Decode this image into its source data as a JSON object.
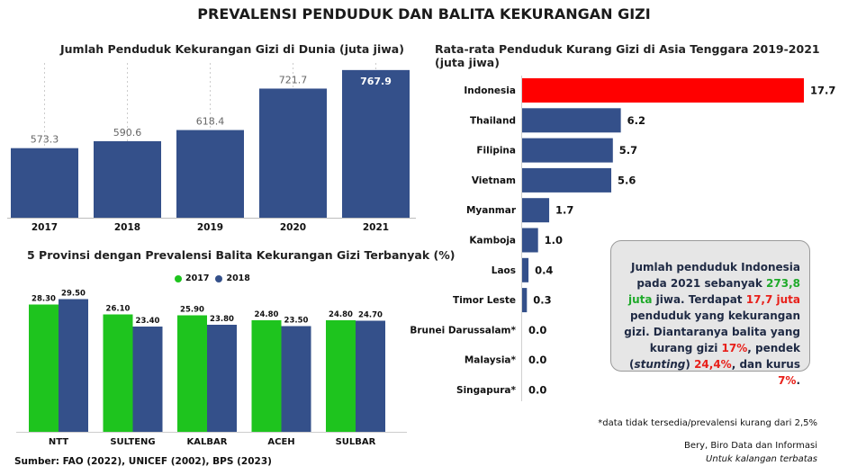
{
  "main_title": "PREVALENSI PENDUDUK DAN BALITA KEKURANGAN GIZI",
  "colors": {
    "navy": "#34508a",
    "green": "#1ec41e",
    "red": "#ff0000"
  },
  "chart_data": [
    {
      "type": "bar",
      "title": "Jumlah Penduduk Kekurangan Gizi di Dunia (juta jiwa)",
      "categories": [
        "2017",
        "2018",
        "2019",
        "2020",
        "2021"
      ],
      "values": [
        573.3,
        590.6,
        618.4,
        721.7,
        767.9
      ],
      "labels": [
        "573.3",
        "590.6",
        "618.4",
        "721.7",
        "767.9"
      ],
      "ylim": [
        400,
        790
      ],
      "color": "#34508a"
    },
    {
      "type": "bar",
      "title": "5 Provinsi dengan Prevalensi Balita Kekurangan Gizi Terbanyak (%)",
      "categories": [
        "NTT",
        "SULTENG",
        "KALBAR",
        "ACEH",
        "SULBAR"
      ],
      "series": [
        {
          "name": "2017",
          "color": "#1ec41e",
          "values": [
            28.3,
            26.1,
            25.9,
            24.8,
            24.8
          ],
          "labels": [
            "28.30",
            "26.10",
            "25.90",
            "24.80",
            "24.80"
          ]
        },
        {
          "name": "2018",
          "color": "#34508a",
          "values": [
            29.5,
            23.4,
            23.8,
            23.5,
            24.7
          ],
          "labels": [
            "29.50",
            "23.40",
            "23.80",
            "23.50",
            "24.70"
          ]
        }
      ],
      "ylim": [
        0,
        36
      ]
    },
    {
      "type": "bar",
      "orientation": "horizontal",
      "title": "Rata-rata Penduduk Kurang Gizi di Asia Tenggara 2019-2021 (juta jiwa)",
      "categories": [
        "Indonesia",
        "Thailand",
        "Filipina",
        "Vietnam",
        "Myanmar",
        "Kamboja",
        "Laos",
        "Timor Leste",
        "Brunei Darussalam*",
        "Malaysia*",
        "Singapura*"
      ],
      "values": [
        17.7,
        6.2,
        5.7,
        5.6,
        1.7,
        1.0,
        0.4,
        0.3,
        0.0,
        0.0,
        0.0
      ],
      "labels": [
        "17.7",
        "6.2",
        "5.7",
        "5.6",
        "1.7",
        "1.0",
        "0.4",
        "0.3",
        "0.0",
        "0.0",
        "0.0"
      ],
      "xlim": [
        0,
        17.7
      ],
      "color": "#34508a",
      "highlight_color": "#ff0000"
    }
  ],
  "infobox": {
    "t1": "Jumlah penduduk Indonesia pada 2021 sebanyak ",
    "v1": "273,8 juta",
    "t2": " jiwa. Terdapat ",
    "v2": "17,7 juta",
    "t3": " penduduk yang kekurangan gizi. Diantaranya balita yang kurang gizi ",
    "v3": "17%",
    "t4": ", pendek (",
    "t5": "stunting",
    "t6": ") ",
    "v4": "24,4%",
    "t7": ", dan kurus ",
    "v5": "7%",
    "t8": "."
  },
  "note": "*data tidak tersedia/prevalensi kurang dari 2,5%",
  "credit": "Bery, Biro Data dan Informasi",
  "credit2": "Untuk kalangan terbatas",
  "source": "Sumber: FAO (2022), UNICEF (2002), BPS (2023)"
}
